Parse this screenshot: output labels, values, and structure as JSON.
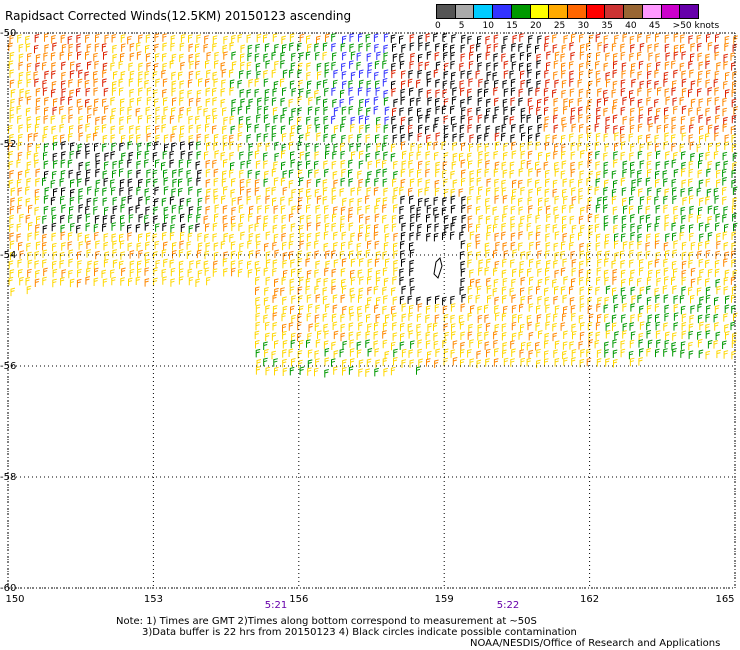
{
  "title": "Rapidsact Corrected Winds(12.5KM) 20150123 ascending",
  "colors": {
    "background": "#ffffff",
    "grid": "#000000",
    "calm": "#555555",
    "light": "#00ccff",
    "low": "#3333ff",
    "green": "#009900",
    "yellow": "#ffd700",
    "orange": "#ff8800",
    "red": "#dd2200",
    "brown": "#aa5500",
    "pink": "#ff00ff",
    "purple": "#6600aa",
    "black": "#000000",
    "time_label": "#6600aa"
  },
  "legend": {
    "boxes": [
      {
        "color": "#555555"
      },
      {
        "color": "#aaaaaa"
      },
      {
        "color": "#00ccff"
      },
      {
        "color": "#3333ff"
      },
      {
        "color": "#009900"
      },
      {
        "color": "#ffff00"
      },
      {
        "color": "#ffaa00"
      },
      {
        "color": "#ff6600"
      },
      {
        "color": "#ff0000"
      },
      {
        "color": "#cc3333"
      },
      {
        "color": "#996633"
      },
      {
        "color": "#ff99ff"
      },
      {
        "color": "#cc00cc"
      },
      {
        "color": "#6600aa"
      }
    ],
    "labels": [
      "0",
      "5",
      "10",
      "15",
      "20",
      "25",
      "30",
      "35",
      "40",
      "45",
      ">50 knots"
    ]
  },
  "axes": {
    "y_labels": [
      "-50",
      "-52",
      "-54",
      "-56",
      "-58",
      "-60"
    ],
    "x_labels": [
      "150",
      "153",
      "156",
      "159",
      "162",
      "165"
    ],
    "xlim": [
      150,
      165
    ],
    "ylim": [
      -60,
      -50
    ]
  },
  "times": [
    {
      "label": "5:21",
      "lon": 155.6
    },
    {
      "label": "5:22",
      "lon": 160.3
    }
  ],
  "notes": {
    "line1": "Note: 1) Times are GMT 2)Times along bottom correspond to measurement at ~50S",
    "line2": "3)Data buffer is 22 hrs from 20150123 4) Black circles indicate possible contamination",
    "credit": "NOAA/NESDIS/Office of Research and Applications"
  }
}
